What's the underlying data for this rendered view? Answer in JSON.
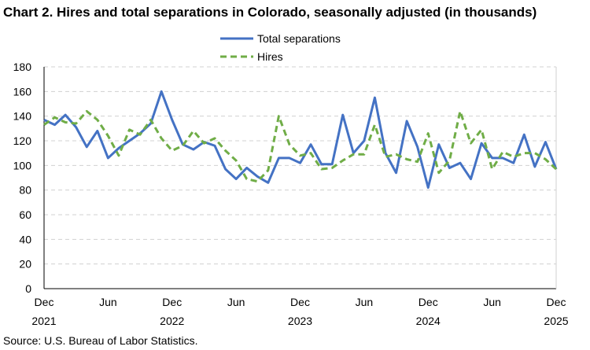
{
  "chart_data": {
    "type": "line",
    "title": "Chart 2. Hires and total separations in Colorado, seasonally adjusted (in thousands)",
    "source": "Source: U.S. Bureau of Labor Statistics.",
    "xlabel": "",
    "ylabel": "",
    "ylim": [
      0,
      180
    ],
    "y_ticks": [
      0,
      20,
      40,
      60,
      80,
      100,
      120,
      140,
      160,
      180
    ],
    "x_ticks": [
      {
        "index": 0,
        "month": "Dec",
        "year": "2021"
      },
      {
        "index": 6,
        "month": "Jun",
        "year": ""
      },
      {
        "index": 12,
        "month": "Dec",
        "year": "2022"
      },
      {
        "index": 18,
        "month": "Jun",
        "year": ""
      },
      {
        "index": 24,
        "month": "Dec",
        "year": "2023"
      },
      {
        "index": 30,
        "month": "Jun",
        "year": ""
      },
      {
        "index": 36,
        "month": "Dec",
        "year": "2024"
      },
      {
        "index": 42,
        "month": "Jun",
        "year": ""
      },
      {
        "index": 48,
        "month": "Dec",
        "year": "2025"
      }
    ],
    "x_range": [
      "Dec 2021",
      "Dec 2025"
    ],
    "grid": "horizontal dashed",
    "legend": "top-center",
    "series": [
      {
        "name": "Total separations",
        "color": "#4472c4",
        "style": "solid",
        "values": [
          137,
          133,
          141,
          131,
          115,
          128,
          106,
          114,
          120,
          126,
          134,
          160,
          137,
          117,
          113,
          119,
          116,
          97,
          89,
          98,
          91,
          86,
          106,
          106,
          102,
          117,
          101,
          101,
          141,
          110,
          120,
          155,
          110,
          94,
          136,
          115,
          82,
          117,
          98,
          102,
          89,
          118,
          106,
          106,
          102,
          125,
          99,
          119,
          97
        ]
      },
      {
        "name": "Hires",
        "color": "#70ad47",
        "style": "dashed",
        "values": [
          133,
          139,
          135,
          134,
          144,
          137,
          124,
          108,
          129,
          125,
          137,
          122,
          112,
          116,
          128,
          118,
          122,
          112,
          104,
          89,
          87,
          96,
          140,
          117,
          108,
          110,
          97,
          98,
          104,
          109,
          109,
          133,
          107,
          109,
          105,
          103,
          126,
          94,
          104,
          144,
          118,
          129,
          97,
          111,
          107,
          110,
          110,
          105,
          97
        ]
      }
    ]
  }
}
